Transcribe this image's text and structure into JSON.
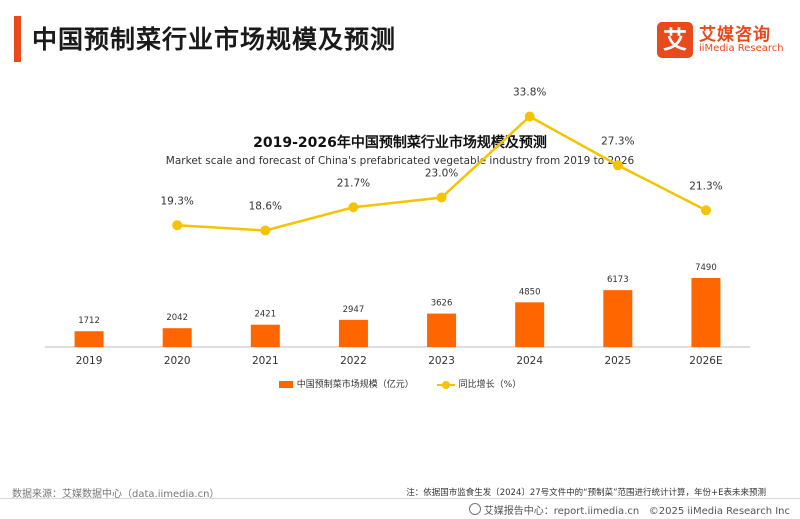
{
  "header": {
    "title": "中国预制菜行业市场规模及预测",
    "logo": {
      "mark": "艾",
      "name_cn": "艾媒咨询",
      "name_en": "iiMedia Research"
    }
  },
  "colors": {
    "accent": "#e8491d",
    "bar": "#ff6600",
    "line": "#f5c400"
  },
  "chart_data": {
    "type": "bar",
    "title": "2019-2026年中国预制菜行业市场规模及预测",
    "subtitle": "Market scale and forecast of China's prefabricated vegetable industry from 2019 to 2026",
    "categories": [
      "2019",
      "2020",
      "2021",
      "2022",
      "2023",
      "2024",
      "2025",
      "2026E"
    ],
    "series": [
      {
        "name": "中国预制菜市场规模（亿元）",
        "type": "bar",
        "values": [
          1712,
          2042,
          2421,
          2947,
          3626,
          4850,
          6173,
          7490
        ]
      },
      {
        "name": "同比增长（%）",
        "type": "line",
        "values": [
          null,
          19.3,
          18.6,
          21.7,
          23.0,
          33.8,
          27.3,
          21.3
        ],
        "labels": [
          "",
          "19.3%",
          "18.6%",
          "21.7%",
          "23.0%",
          "33.8%",
          "27.3%",
          "21.3%"
        ]
      }
    ],
    "bar_labels": [
      "1712",
      "2042",
      "2421",
      "2947",
      "3626",
      "4850",
      "6173",
      "7490"
    ],
    "legend_position": "bottom",
    "grid": false
  },
  "footer": {
    "source": "数据来源：艾媒数据中心（data.iimedia.cn）",
    "note": "注：依据国市监食生发〔2024〕27号文件中的“预制菜”范围进行统计计算，年份+E表未来预测",
    "report": "艾媒报告中心：report.iimedia.cn",
    "copyright": "©2025  iiMedia Research  Inc"
  }
}
